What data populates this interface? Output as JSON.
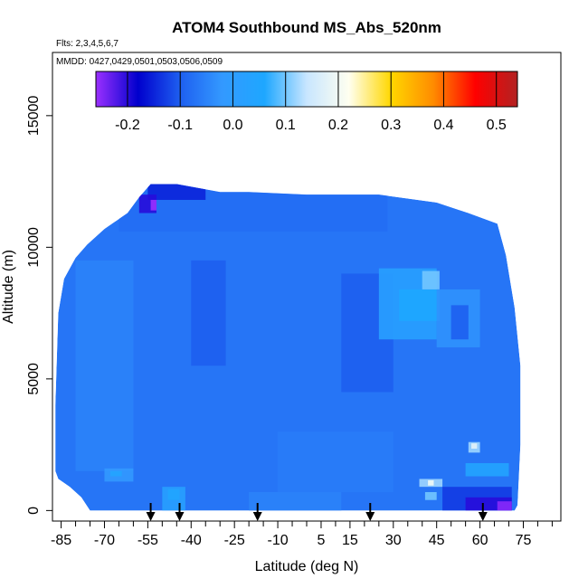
{
  "chart_data": {
    "type": "heatmap",
    "title": "ATOM4 Southbound MS_Abs_520nm",
    "subtitle_flights": "Flts: 2,3,4,5,6,7",
    "subtitle_dates": "MMDD: 0427,0429,0501,0503,0506,0509",
    "xlabel": "Latitude (deg N)",
    "ylabel": "Altitude (m)",
    "xlim": [
      -88,
      88
    ],
    "ylim": [
      -400,
      17400
    ],
    "x_ticks": [
      -85,
      -70,
      -55,
      -40,
      -25,
      -10,
      5,
      15,
      30,
      45,
      60,
      75
    ],
    "x_minor_ticks": [
      -80,
      -75,
      -65,
      -60,
      -50,
      -45,
      -35,
      -30,
      -20,
      -15,
      -5,
      0,
      10,
      20,
      25,
      35,
      40,
      50,
      55,
      65,
      70,
      80,
      85
    ],
    "y_ticks": [
      0,
      5000,
      10000,
      15000
    ],
    "colorbar": {
      "min": -0.26,
      "max": 0.54,
      "ticks": [
        -0.2,
        -0.1,
        0.0,
        0.1,
        0.2,
        0.3,
        0.4,
        0.5
      ],
      "tick_labels": [
        "-0.2",
        "-0.1",
        "0.0",
        "0.1",
        "0.2",
        "0.3",
        "0.4",
        "0.5"
      ],
      "colors": [
        "#9b30ff",
        "#0000cd",
        "#1e5ff0",
        "#3399ff",
        "#1ea7ff",
        "#c8e6ff",
        "#fffff0",
        "#ffd700",
        "#ff8c00",
        "#ff0000",
        "#b22222"
      ]
    },
    "background_value": -0.07,
    "domain_outline": [
      [
        -87,
        1500
      ],
      [
        -87,
        4000
      ],
      [
        -86,
        7500
      ],
      [
        -84,
        8800
      ],
      [
        -80,
        9600
      ],
      [
        -76,
        10100
      ],
      [
        -70,
        10700
      ],
      [
        -62,
        11300
      ],
      [
        -58,
        11900
      ],
      [
        -54,
        12400
      ],
      [
        -45,
        12400
      ],
      [
        -30,
        12100
      ],
      [
        -20,
        12100
      ],
      [
        0,
        12000
      ],
      [
        25,
        12000
      ],
      [
        45,
        11700
      ],
      [
        56,
        11300
      ],
      [
        66,
        10900
      ],
      [
        69,
        9700
      ],
      [
        72,
        7700
      ],
      [
        74,
        5500
      ],
      [
        74,
        2500
      ],
      [
        73,
        200
      ],
      [
        72,
        0
      ],
      [
        -75,
        0
      ],
      [
        -78,
        500
      ],
      [
        -82,
        900
      ],
      [
        -86,
        1200
      ]
    ],
    "features": [
      {
        "lat": [
          -65,
          28
        ],
        "alt": [
          10600,
          12400
        ],
        "value": -0.08
      },
      {
        "lat": [
          -55,
          -35
        ],
        "alt": [
          11800,
          12450
        ],
        "value": -0.15
      },
      {
        "lat": [
          -58,
          -52
        ],
        "alt": [
          11300,
          12000
        ],
        "value": -0.2
      },
      {
        "lat": [
          -54,
          -52
        ],
        "alt": [
          11400,
          11800
        ],
        "value": -0.26
      },
      {
        "lat": [
          -40,
          -28
        ],
        "alt": [
          5500,
          9500
        ],
        "value": -0.1
      },
      {
        "lat": [
          -80,
          -60
        ],
        "alt": [
          1500,
          9500
        ],
        "value": -0.05
      },
      {
        "lat": [
          12,
          30
        ],
        "alt": [
          4500,
          9000
        ],
        "value": -0.1
      },
      {
        "lat": [
          25,
          45
        ],
        "alt": [
          6500,
          9200
        ],
        "value": 0.02
      },
      {
        "lat": [
          32,
          46
        ],
        "alt": [
          7200,
          8400
        ],
        "value": 0.06
      },
      {
        "lat": [
          40,
          46
        ],
        "alt": [
          8400,
          9100
        ],
        "value": 0.1
      },
      {
        "lat": [
          45,
          60
        ],
        "alt": [
          6200,
          8400
        ],
        "value": -0.03
      },
      {
        "lat": [
          55,
          70
        ],
        "alt": [
          1300,
          1800
        ],
        "value": 0.04
      },
      {
        "lat": [
          56,
          60
        ],
        "alt": [
          2200,
          2600
        ],
        "value": 0.12
      },
      {
        "lat": [
          57,
          59
        ],
        "alt": [
          2350,
          2550
        ],
        "value": 0.18
      },
      {
        "lat": [
          39,
          47
        ],
        "alt": [
          900,
          1200
        ],
        "value": 0.12
      },
      {
        "lat": [
          42,
          44
        ],
        "alt": [
          950,
          1150
        ],
        "value": 0.2
      },
      {
        "lat": [
          41,
          45
        ],
        "alt": [
          400,
          700
        ],
        "value": 0.1
      },
      {
        "lat": [
          47,
          71
        ],
        "alt": [
          0,
          900
        ],
        "value": -0.13
      },
      {
        "lat": [
          55,
          71
        ],
        "alt": [
          0,
          500
        ],
        "value": -0.2
      },
      {
        "lat": [
          66,
          71
        ],
        "alt": [
          0,
          350
        ],
        "value": -0.25
      },
      {
        "lat": [
          -50,
          -42
        ],
        "alt": [
          0,
          900
        ],
        "value": 0.02
      },
      {
        "lat": [
          -48,
          -44
        ],
        "alt": [
          400,
          800
        ],
        "value": 0.05
      },
      {
        "lat": [
          -70,
          -60
        ],
        "alt": [
          1100,
          1600
        ],
        "value": -0.02
      },
      {
        "lat": [
          -68,
          -64
        ],
        "alt": [
          1300,
          1500
        ],
        "value": 0.04
      },
      {
        "lat": [
          -20,
          12
        ],
        "alt": [
          0,
          700
        ],
        "value": -0.05
      },
      {
        "lat": [
          -10,
          30
        ],
        "alt": [
          700,
          3000
        ],
        "value": -0.06
      },
      {
        "lat": [
          50,
          56
        ],
        "alt": [
          6500,
          7800
        ],
        "value": -0.1
      }
    ],
    "markers_lat": [
      -54,
      -44,
      -17,
      22,
      61
    ]
  }
}
